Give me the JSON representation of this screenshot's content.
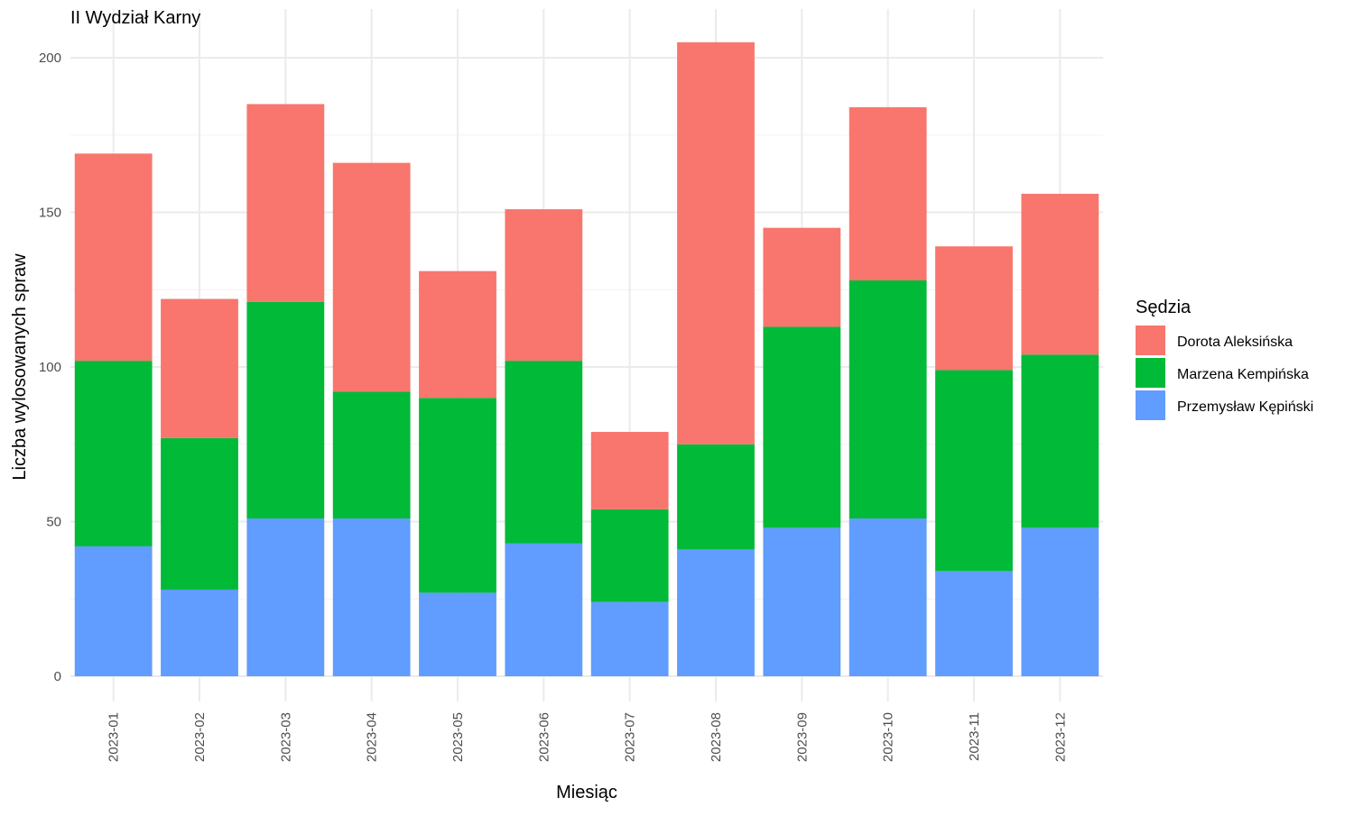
{
  "chart_data": {
    "type": "bar",
    "stacked": true,
    "title": "II Wydział Karny",
    "xlabel": "Miesiąc",
    "ylabel": "Liczba wylosowanych spraw",
    "ylim": [
      0,
      210
    ],
    "yticks": [
      0,
      50,
      100,
      150,
      200
    ],
    "grid": true,
    "legend": {
      "title": "Sędzia",
      "position": "right"
    },
    "categories": [
      "2023-01",
      "2023-02",
      "2023-03",
      "2023-04",
      "2023-05",
      "2023-06",
      "2023-07",
      "2023-08",
      "2023-09",
      "2023-10",
      "2023-11",
      "2023-12"
    ],
    "series": [
      {
        "name": "Przemysław Kępiński",
        "color": "#619CFF",
        "values": [
          42,
          28,
          51,
          51,
          27,
          43,
          24,
          41,
          48,
          51,
          34,
          48
        ]
      },
      {
        "name": "Marzena Kempińska",
        "color": "#00BA38",
        "values": [
          60,
          49,
          70,
          41,
          63,
          59,
          30,
          34,
          65,
          77,
          65,
          56
        ]
      },
      {
        "name": "Dorota Aleksińska",
        "color": "#F8766D",
        "values": [
          67,
          45,
          64,
          74,
          41,
          49,
          25,
          130,
          32,
          56,
          40,
          52
        ]
      }
    ],
    "legend_order": [
      "Dorota Aleksińska",
      "Marzena Kempińska",
      "Przemysław Kępiński"
    ]
  }
}
